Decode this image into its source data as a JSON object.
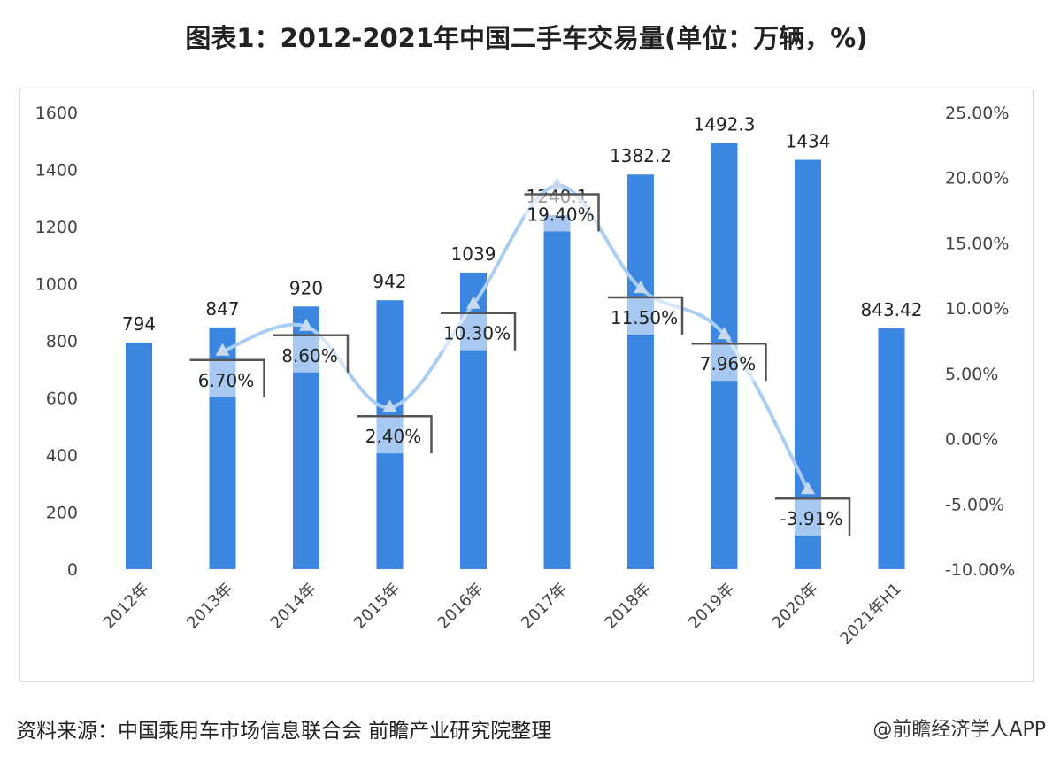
{
  "title": "图表1：2012-2021年中国二手车交易量(单位：万辆，%)",
  "source": "资料来源：中国乘用车市场信息联合会 前瞻产业研究院整理",
  "credit": "@前瞻经济学人APP",
  "chart_data": {
    "type": "bar+line",
    "title": "图表1：2012-2021年中国二手车交易量(单位：万辆，%)",
    "categories": [
      "2012年",
      "2013年",
      "2014年",
      "2015年",
      "2016年",
      "2017年",
      "2018年",
      "2019年",
      "2020年",
      "2021年H1"
    ],
    "series": [
      {
        "type": "bar",
        "axis": "left",
        "values": [
          794,
          847,
          920,
          942,
          1039,
          1240.1,
          1382.2,
          1492.3,
          1434,
          843.42
        ],
        "labels": [
          "794",
          "847",
          "920",
          "942",
          "1039",
          "1240.1",
          "1382.2",
          "1492.3",
          "1434",
          "843.42"
        ],
        "color": "#3a86e0"
      },
      {
        "type": "line",
        "axis": "right",
        "values": [
          null,
          6.7,
          8.6,
          2.4,
          10.3,
          19.4,
          11.5,
          7.96,
          -3.91,
          null
        ],
        "labels": [
          "",
          "6.70%",
          "8.60%",
          "2.40%",
          "10.30%",
          "19.40%",
          "11.50%",
          "7.96%",
          "-3.91%",
          ""
        ],
        "color": "#a9cdf3"
      }
    ],
    "left_axis": {
      "ylim": [
        0,
        1600
      ],
      "ticks": [
        "0",
        "200",
        "400",
        "600",
        "800",
        "1000",
        "1200",
        "1400",
        "1600"
      ]
    },
    "right_axis": {
      "ylim": [
        -10,
        25
      ],
      "ticks": [
        "-10.00%",
        "-5.00%",
        "0.00%",
        "5.00%",
        "10.00%",
        "15.00%",
        "20.00%",
        "25.00%"
      ]
    },
    "grid": false,
    "legend": "none"
  }
}
